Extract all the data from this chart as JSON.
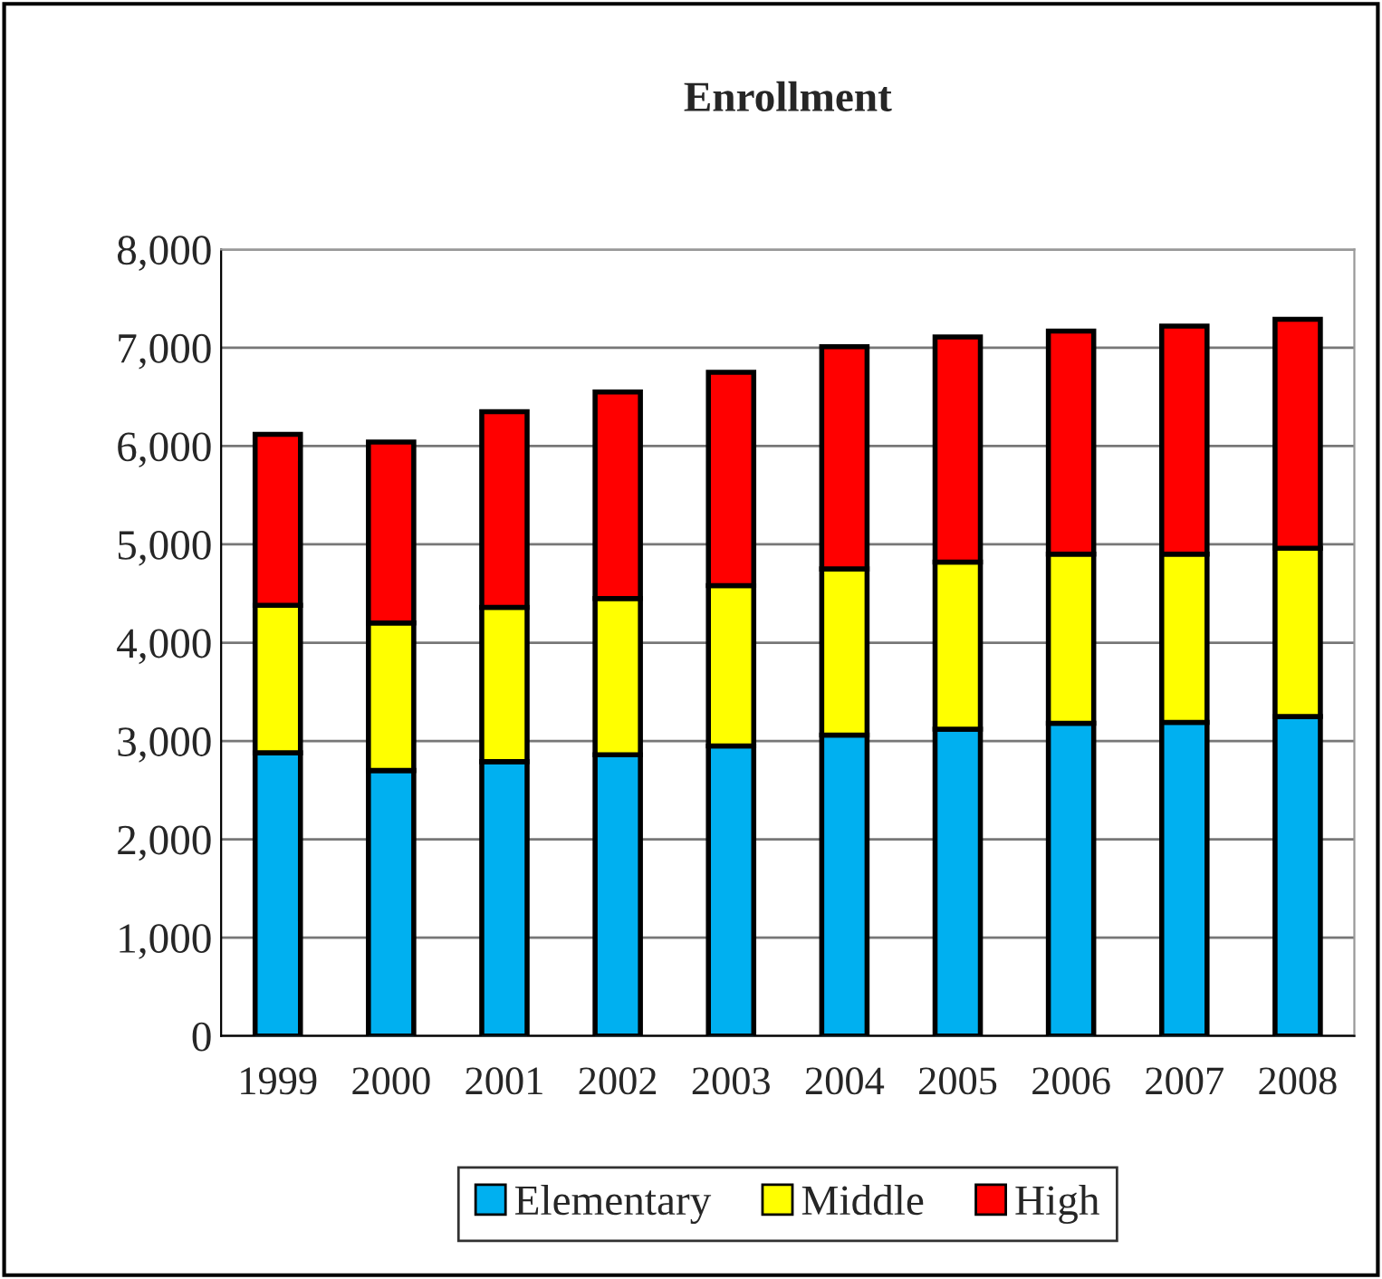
{
  "chart_data": {
    "type": "bar",
    "title": "Enrollment",
    "stacked": true,
    "categories": [
      "1999",
      "2000",
      "2001",
      "2002",
      "2003",
      "2004",
      "2005",
      "2006",
      "2007",
      "2008"
    ],
    "series": [
      {
        "name": "Elementary",
        "color": "#00b0f0",
        "values": [
          2880,
          2700,
          2790,
          2860,
          2950,
          3060,
          3120,
          3180,
          3190,
          3250
        ]
      },
      {
        "name": "Middle",
        "color": "#ffff00",
        "values": [
          1500,
          1500,
          1570,
          1590,
          1630,
          1690,
          1700,
          1720,
          1710,
          1710
        ]
      },
      {
        "name": "High",
        "color": "#ff0000",
        "values": [
          1740,
          1840,
          1990,
          2100,
          2170,
          2260,
          2290,
          2270,
          2320,
          2330
        ]
      }
    ],
    "ylim": [
      0,
      8000
    ],
    "yticks": [
      {
        "value": 0,
        "label": "0"
      },
      {
        "value": 1000,
        "label": "1,000"
      },
      {
        "value": 2000,
        "label": "2,000"
      },
      {
        "value": 3000,
        "label": "3,000"
      },
      {
        "value": 4000,
        "label": "4,000"
      },
      {
        "value": 5000,
        "label": "5,000"
      },
      {
        "value": 6000,
        "label": "6,000"
      },
      {
        "value": 7000,
        "label": "7,000"
      },
      {
        "value": 8000,
        "label": "8,000"
      }
    ],
    "grid": "y",
    "legend": "bottom"
  }
}
